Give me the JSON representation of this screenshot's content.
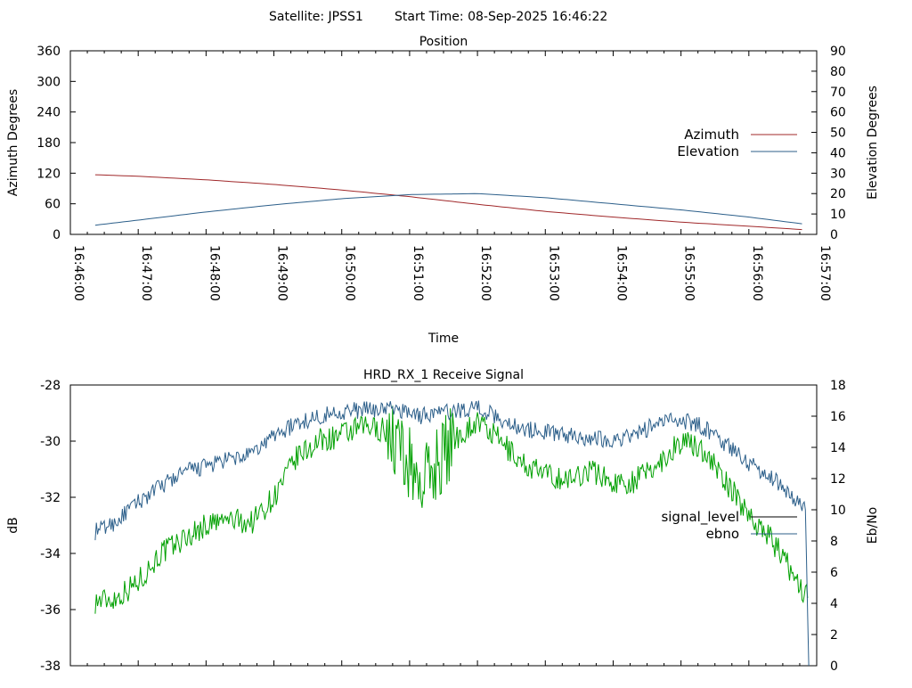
{
  "header": {
    "satellite_label": "Satellite: JPSS1",
    "start_time_label": "Start Time: 08-Sep-2025 16:46:22"
  },
  "chart_data": [
    {
      "type": "line",
      "title": "Position",
      "xlabel": "Time",
      "ylabel_left": "Azimuth Degrees",
      "ylabel_right": "Elevation Degrees",
      "x_ticks": [
        "16:46:00",
        "16:47:00",
        "16:48:00",
        "16:49:00",
        "16:50:00",
        "16:51:00",
        "16:52:00",
        "16:53:00",
        "16:54:00",
        "16:55:00",
        "16:56:00",
        "16:57:00"
      ],
      "y_left_ticks": [
        "0",
        "60",
        "120",
        "180",
        "240",
        "300",
        "360"
      ],
      "y_right_ticks": [
        "0",
        "10",
        "20",
        "30",
        "40",
        "50",
        "60",
        "70",
        "80",
        "90"
      ],
      "ylim_left": [
        0,
        360
      ],
      "ylim_right": [
        0,
        90
      ],
      "xlim": [
        "16:46:00",
        "16:57:00"
      ],
      "legend_position": "right",
      "series": [
        {
          "name": "Azimuth",
          "axis": "left",
          "color": "#a0282a",
          "x": [
            "16:46:22",
            "16:47:00",
            "16:48:00",
            "16:49:00",
            "16:50:00",
            "16:51:00",
            "16:52:00",
            "16:53:00",
            "16:54:00",
            "16:55:00",
            "16:56:00",
            "16:56:50"
          ],
          "values": [
            117,
            114,
            107,
            98,
            87,
            74,
            59,
            45,
            34,
            24,
            16,
            9
          ]
        },
        {
          "name": "Elevation",
          "axis": "right",
          "color": "#2c5f8a",
          "x": [
            "16:46:22",
            "16:47:00",
            "16:48:00",
            "16:49:00",
            "16:50:00",
            "16:51:00",
            "16:52:00",
            "16:53:00",
            "16:54:00",
            "16:55:00",
            "16:56:00",
            "16:56:50"
          ],
          "values": [
            4.5,
            7,
            11,
            14.5,
            17.5,
            19.5,
            20,
            18,
            15,
            12,
            8.5,
            5
          ]
        }
      ]
    },
    {
      "type": "line",
      "title": "HRD_RX_1 Receive Signal",
      "xlabel": "",
      "ylabel_left": "dB",
      "ylabel_right": "Eb/No",
      "y_left_ticks": [
        "-38",
        "-36",
        "-34",
        "-32",
        "-30",
        "-28"
      ],
      "y_right_ticks": [
        "0",
        "2",
        "4",
        "6",
        "8",
        "10",
        "12",
        "14",
        "16",
        "18"
      ],
      "ylim_left": [
        -38,
        -28
      ],
      "ylim_right": [
        0,
        18
      ],
      "xlim": [
        "16:46:00",
        "16:57:00"
      ],
      "legend_position": "right",
      "series": [
        {
          "name": "signal_level",
          "axis": "left",
          "color": "#00a000",
          "x": [
            "16:46:22",
            "16:46:40",
            "16:47:00",
            "16:47:20",
            "16:47:40",
            "16:48:00",
            "16:48:20",
            "16:48:40",
            "16:49:00",
            "16:49:20",
            "16:49:40",
            "16:50:00",
            "16:50:20",
            "16:50:40",
            "16:51:00",
            "16:51:10",
            "16:51:20",
            "16:51:40",
            "16:52:00",
            "16:52:20",
            "16:52:40",
            "16:53:00",
            "16:53:20",
            "16:53:40",
            "16:54:00",
            "16:54:20",
            "16:54:40",
            "16:55:00",
            "16:55:20",
            "16:55:40",
            "16:56:00",
            "16:56:20",
            "16:56:40",
            "16:56:52"
          ],
          "values": [
            -35.7,
            -35.6,
            -35.0,
            -34.0,
            -33.5,
            -33.0,
            -32.8,
            -32.9,
            -32.0,
            -30.6,
            -30.0,
            -29.8,
            -29.5,
            -29.6,
            -30.8,
            -31.5,
            -31.0,
            -29.9,
            -29.3,
            -30.0,
            -30.8,
            -31.2,
            -31.4,
            -31.0,
            -31.5,
            -31.4,
            -30.8,
            -30.0,
            -30.3,
            -31.5,
            -32.6,
            -33.5,
            -34.8,
            -35.6
          ]
        },
        {
          "name": "ebno",
          "axis": "right",
          "color": "#2c5f8a",
          "x": [
            "16:46:22",
            "16:46:40",
            "16:47:00",
            "16:47:20",
            "16:47:40",
            "16:48:00",
            "16:48:20",
            "16:48:40",
            "16:49:00",
            "16:49:20",
            "16:49:40",
            "16:50:00",
            "16:50:20",
            "16:50:40",
            "16:51:00",
            "16:51:10",
            "16:51:20",
            "16:51:40",
            "16:52:00",
            "16:52:20",
            "16:52:40",
            "16:53:00",
            "16:53:20",
            "16:53:40",
            "16:54:00",
            "16:54:20",
            "16:54:40",
            "16:55:00",
            "16:55:20",
            "16:55:40",
            "16:56:00",
            "16:56:20",
            "16:56:40",
            "16:56:50",
            "16:56:53"
          ],
          "values": [
            8.6,
            9.2,
            10.5,
            11.5,
            12.4,
            12.8,
            13.2,
            13.5,
            14.8,
            15.5,
            16.0,
            16.3,
            16.4,
            16.5,
            16.3,
            16.0,
            16.2,
            16.3,
            16.6,
            15.8,
            15.2,
            15.0,
            14.8,
            14.6,
            14.5,
            14.8,
            15.6,
            15.8,
            15.3,
            14.2,
            13.0,
            12.1,
            10.8,
            10.0,
            0.0
          ]
        }
      ]
    }
  ]
}
